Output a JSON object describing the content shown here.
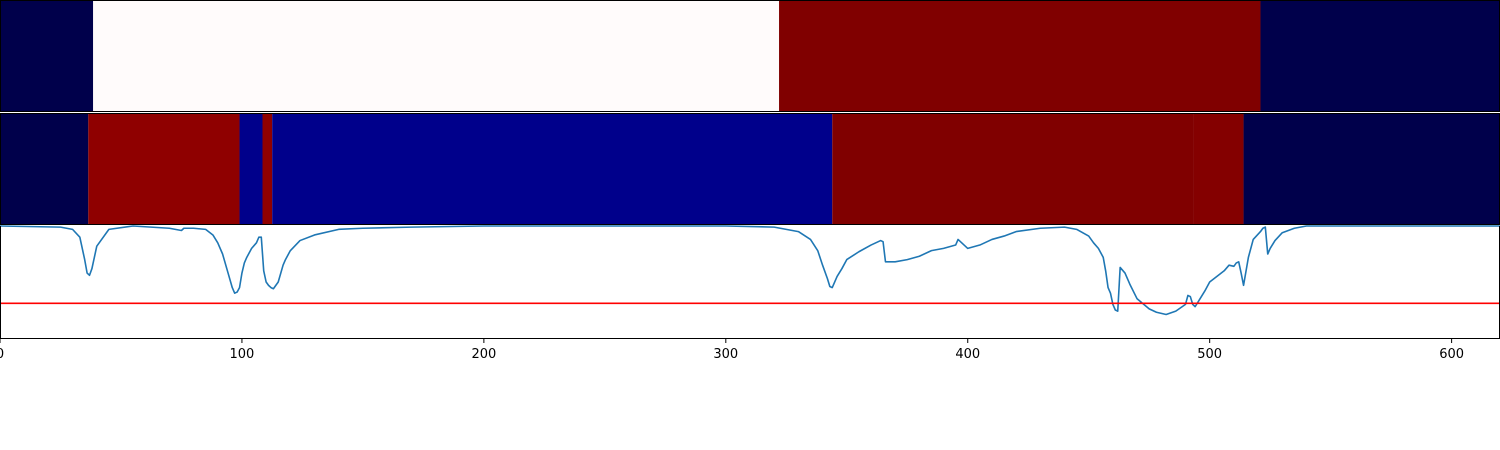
{
  "chart_data": [
    {
      "type": "heatmap",
      "panel": "top-band",
      "colormap": "seismic",
      "xlim": [
        0,
        620
      ],
      "segments": [
        {
          "x0": 0,
          "x1": 38.5,
          "color": "#00004b"
        },
        {
          "x0": 38.5,
          "x1": 322,
          "color": "#fffbfb"
        },
        {
          "x0": 322,
          "x1": 521,
          "color": "#800000"
        },
        {
          "x0": 521,
          "x1": 620,
          "color": "#00004b"
        }
      ]
    },
    {
      "type": "heatmap",
      "panel": "middle-band",
      "colormap": "seismic",
      "xlim": [
        0,
        620
      ],
      "segments": [
        {
          "x0": 0,
          "x1": 36.5,
          "color": "#00004b"
        },
        {
          "x0": 36.5,
          "x1": 99,
          "color": "#8f0000"
        },
        {
          "x0": 99,
          "x1": 108.5,
          "color": "#00008b"
        },
        {
          "x0": 108.5,
          "x1": 112.5,
          "color": "#8f0000"
        },
        {
          "x0": 112.5,
          "x1": 344,
          "color": "#00008b"
        },
        {
          "x0": 344,
          "x1": 493.5,
          "color": "#800000"
        },
        {
          "x0": 493.5,
          "x1": 514,
          "color": "#840000"
        },
        {
          "x0": 514,
          "x1": 620,
          "color": "#00004b"
        }
      ]
    },
    {
      "type": "line",
      "panel": "signal",
      "xlim": [
        0,
        620
      ],
      "ylim": [
        0,
        1
      ],
      "xticks": [
        0,
        100,
        200,
        300,
        400,
        500,
        600
      ],
      "grid": false,
      "series": [
        {
          "color": "#1f77b4",
          "x": [
            0,
            25,
            30,
            33,
            35,
            36,
            37,
            38,
            40,
            45,
            55,
            70,
            75,
            76,
            80,
            85,
            88,
            90,
            92,
            94,
            96,
            97,
            98,
            99,
            100,
            101,
            102,
            104,
            106,
            107,
            108,
            109,
            110,
            111,
            112,
            113,
            115,
            117,
            118,
            120,
            124,
            130,
            140,
            150,
            170,
            200,
            250,
            300,
            320,
            330,
            335,
            338,
            340,
            342,
            343,
            344,
            346,
            348,
            350,
            355,
            360,
            364,
            365,
            366,
            370,
            375,
            380,
            385,
            390,
            395,
            396,
            400,
            405,
            410,
            415,
            420,
            430,
            440,
            445,
            450,
            452,
            454,
            456,
            457,
            458,
            459,
            460,
            461,
            462,
            463,
            465,
            467,
            470,
            475,
            478,
            482,
            486,
            490,
            491,
            492,
            493,
            494,
            496,
            498,
            500,
            503,
            506,
            508,
            510,
            511,
            512,
            513,
            514,
            516,
            518,
            521,
            522,
            523,
            524,
            525,
            527,
            530,
            535,
            540,
            560,
            600,
            620
          ],
          "y": [
            1.0,
            0.99,
            0.97,
            0.9,
            0.7,
            0.58,
            0.56,
            0.62,
            0.82,
            0.97,
            1.0,
            0.98,
            0.96,
            0.98,
            0.98,
            0.97,
            0.92,
            0.85,
            0.75,
            0.6,
            0.45,
            0.4,
            0.41,
            0.45,
            0.58,
            0.67,
            0.72,
            0.8,
            0.85,
            0.9,
            0.9,
            0.6,
            0.5,
            0.47,
            0.45,
            0.44,
            0.5,
            0.65,
            0.7,
            0.78,
            0.87,
            0.92,
            0.97,
            0.98,
            0.99,
            1.0,
            1.0,
            1.0,
            0.99,
            0.95,
            0.88,
            0.78,
            0.65,
            0.53,
            0.46,
            0.45,
            0.55,
            0.62,
            0.7,
            0.77,
            0.83,
            0.87,
            0.86,
            0.68,
            0.68,
            0.7,
            0.73,
            0.78,
            0.8,
            0.83,
            0.88,
            0.8,
            0.83,
            0.88,
            0.91,
            0.95,
            0.98,
            0.99,
            0.97,
            0.91,
            0.85,
            0.8,
            0.72,
            0.6,
            0.45,
            0.4,
            0.3,
            0.25,
            0.24,
            0.63,
            0.58,
            0.48,
            0.35,
            0.26,
            0.23,
            0.21,
            0.24,
            0.3,
            0.38,
            0.37,
            0.3,
            0.28,
            0.35,
            0.42,
            0.5,
            0.55,
            0.6,
            0.65,
            0.64,
            0.67,
            0.68,
            0.58,
            0.47,
            0.72,
            0.88,
            0.95,
            0.98,
            0.99,
            0.75,
            0.8,
            0.87,
            0.94,
            0.98,
            1.0,
            1.0,
            1.0,
            1.0
          ]
        },
        {
          "color": "#ff0000",
          "x": [
            0,
            620
          ],
          "y": [
            0.31,
            0.31
          ]
        }
      ]
    }
  ]
}
